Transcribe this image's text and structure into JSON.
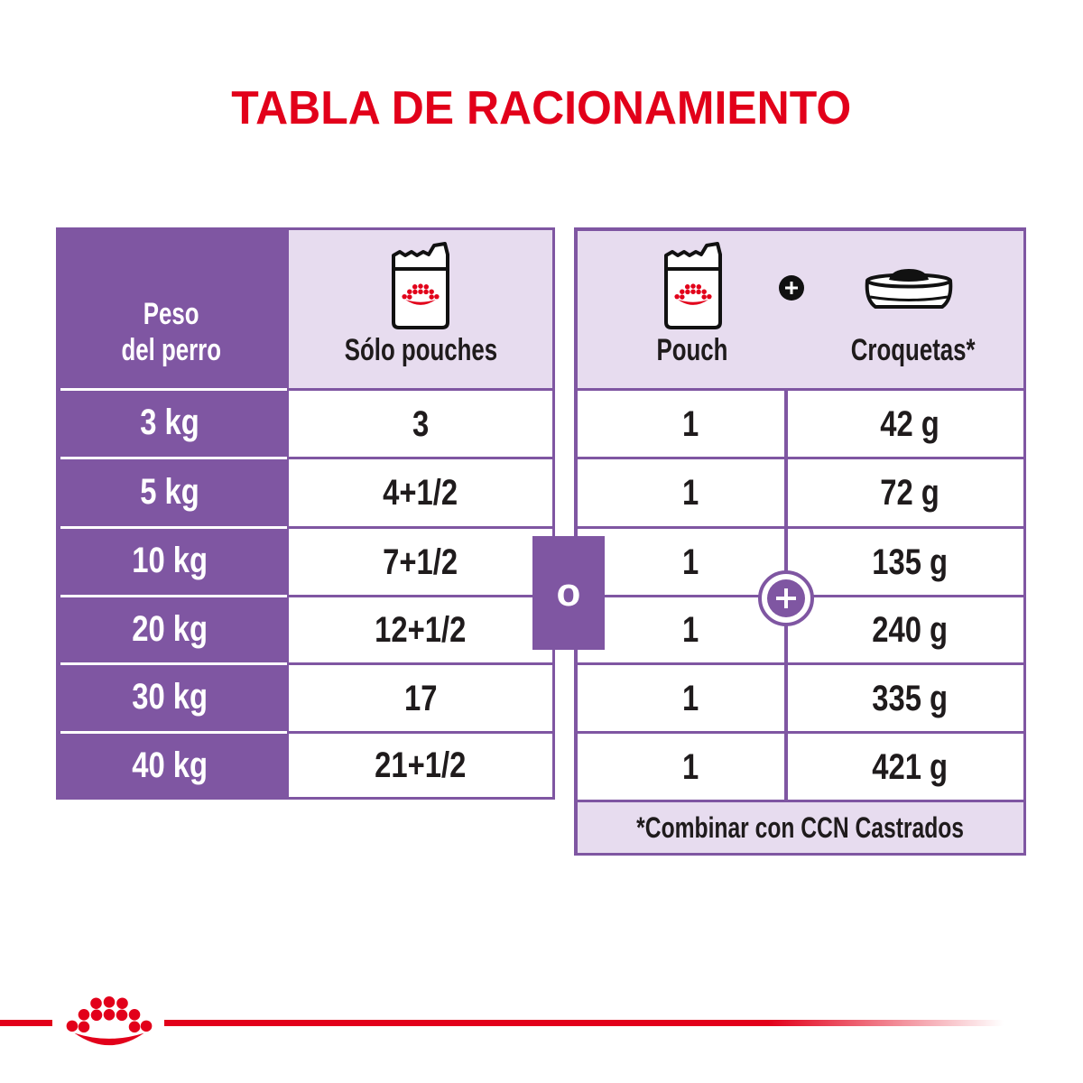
{
  "title": "TABLA DE RACIONAMIENTO",
  "colors": {
    "brand_red": "#e2001a",
    "purple": "#7f56a2",
    "lavender": "#e7dcef",
    "text": "#1f1b1c"
  },
  "pouch_only_table": {
    "header": {
      "weight_line1": "Peso",
      "weight_line2": "del perro",
      "pouches_label": "Sólo pouches",
      "pouches_icon": "pouch-icon"
    },
    "rows": [
      {
        "weight": "3 kg",
        "pouches": "3"
      },
      {
        "weight": "5 kg",
        "pouches": "4+1/2"
      },
      {
        "weight": "10 kg",
        "pouches": "7+1/2"
      },
      {
        "weight": "20 kg",
        "pouches": "12+1/2"
      },
      {
        "weight": "30 kg",
        "pouches": "17"
      },
      {
        "weight": "40 kg",
        "pouches": "21+1/2"
      }
    ]
  },
  "connector_label": "o",
  "mixed_table": {
    "header": {
      "pouch_label": "Pouch",
      "kibble_label": "Croquetas*",
      "pouch_icon": "pouch-icon",
      "plus_icon": "plus-circle-icon",
      "kibble_icon": "bowl-icon"
    },
    "rows": [
      {
        "pouch": "1",
        "kibble": "42 g"
      },
      {
        "pouch": "1",
        "kibble": "72 g"
      },
      {
        "pouch": "1",
        "kibble": "135 g"
      },
      {
        "pouch": "1",
        "kibble": "240 g"
      },
      {
        "pouch": "1",
        "kibble": "335 g"
      },
      {
        "pouch": "1",
        "kibble": "421 g"
      }
    ],
    "combine_icon": "plus-circle-icon",
    "footnote": "*Combinar con CCN Castrados"
  },
  "footer": {
    "logo_icon": "royal-canin-crown-icon"
  }
}
